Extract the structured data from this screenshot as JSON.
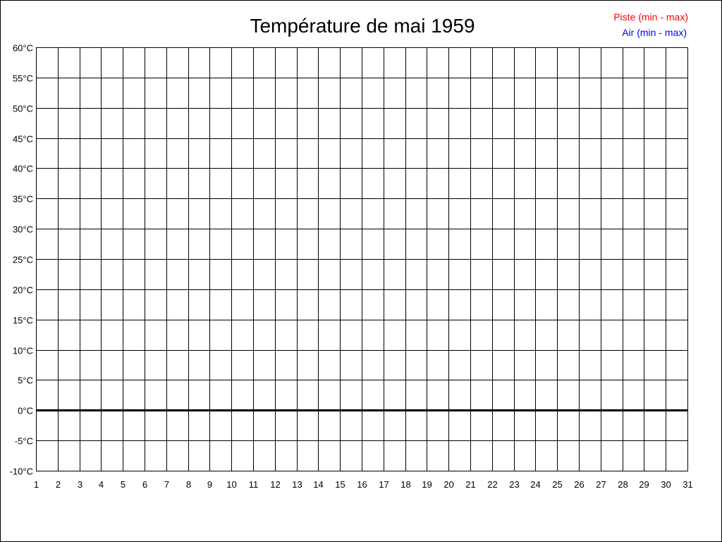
{
  "chart_data": {
    "type": "line",
    "title": "Température de mai 1959",
    "xlabel": "",
    "ylabel": "",
    "x_ticks": [
      "1",
      "2",
      "3",
      "4",
      "5",
      "6",
      "7",
      "8",
      "9",
      "10",
      "11",
      "12",
      "13",
      "14",
      "15",
      "16",
      "17",
      "18",
      "19",
      "20",
      "21",
      "22",
      "23",
      "24",
      "25",
      "26",
      "27",
      "28",
      "29",
      "30",
      "31"
    ],
    "y_ticks": [
      "60°C",
      "55°C",
      "50°C",
      "45°C",
      "40°C",
      "35°C",
      "30°C",
      "25°C",
      "20°C",
      "15°C",
      "10°C",
      "5°C",
      "0°C",
      "-5°C",
      "-10°C"
    ],
    "xlim": [
      1,
      31
    ],
    "ylim": [
      -10,
      60
    ],
    "grid": true,
    "legend_position": "top-right",
    "series": [
      {
        "name": "Piste (min - max)",
        "color": "#ff0000",
        "values": []
      },
      {
        "name": "Air (min - max)",
        "color": "#0000ff",
        "values": []
      }
    ]
  }
}
